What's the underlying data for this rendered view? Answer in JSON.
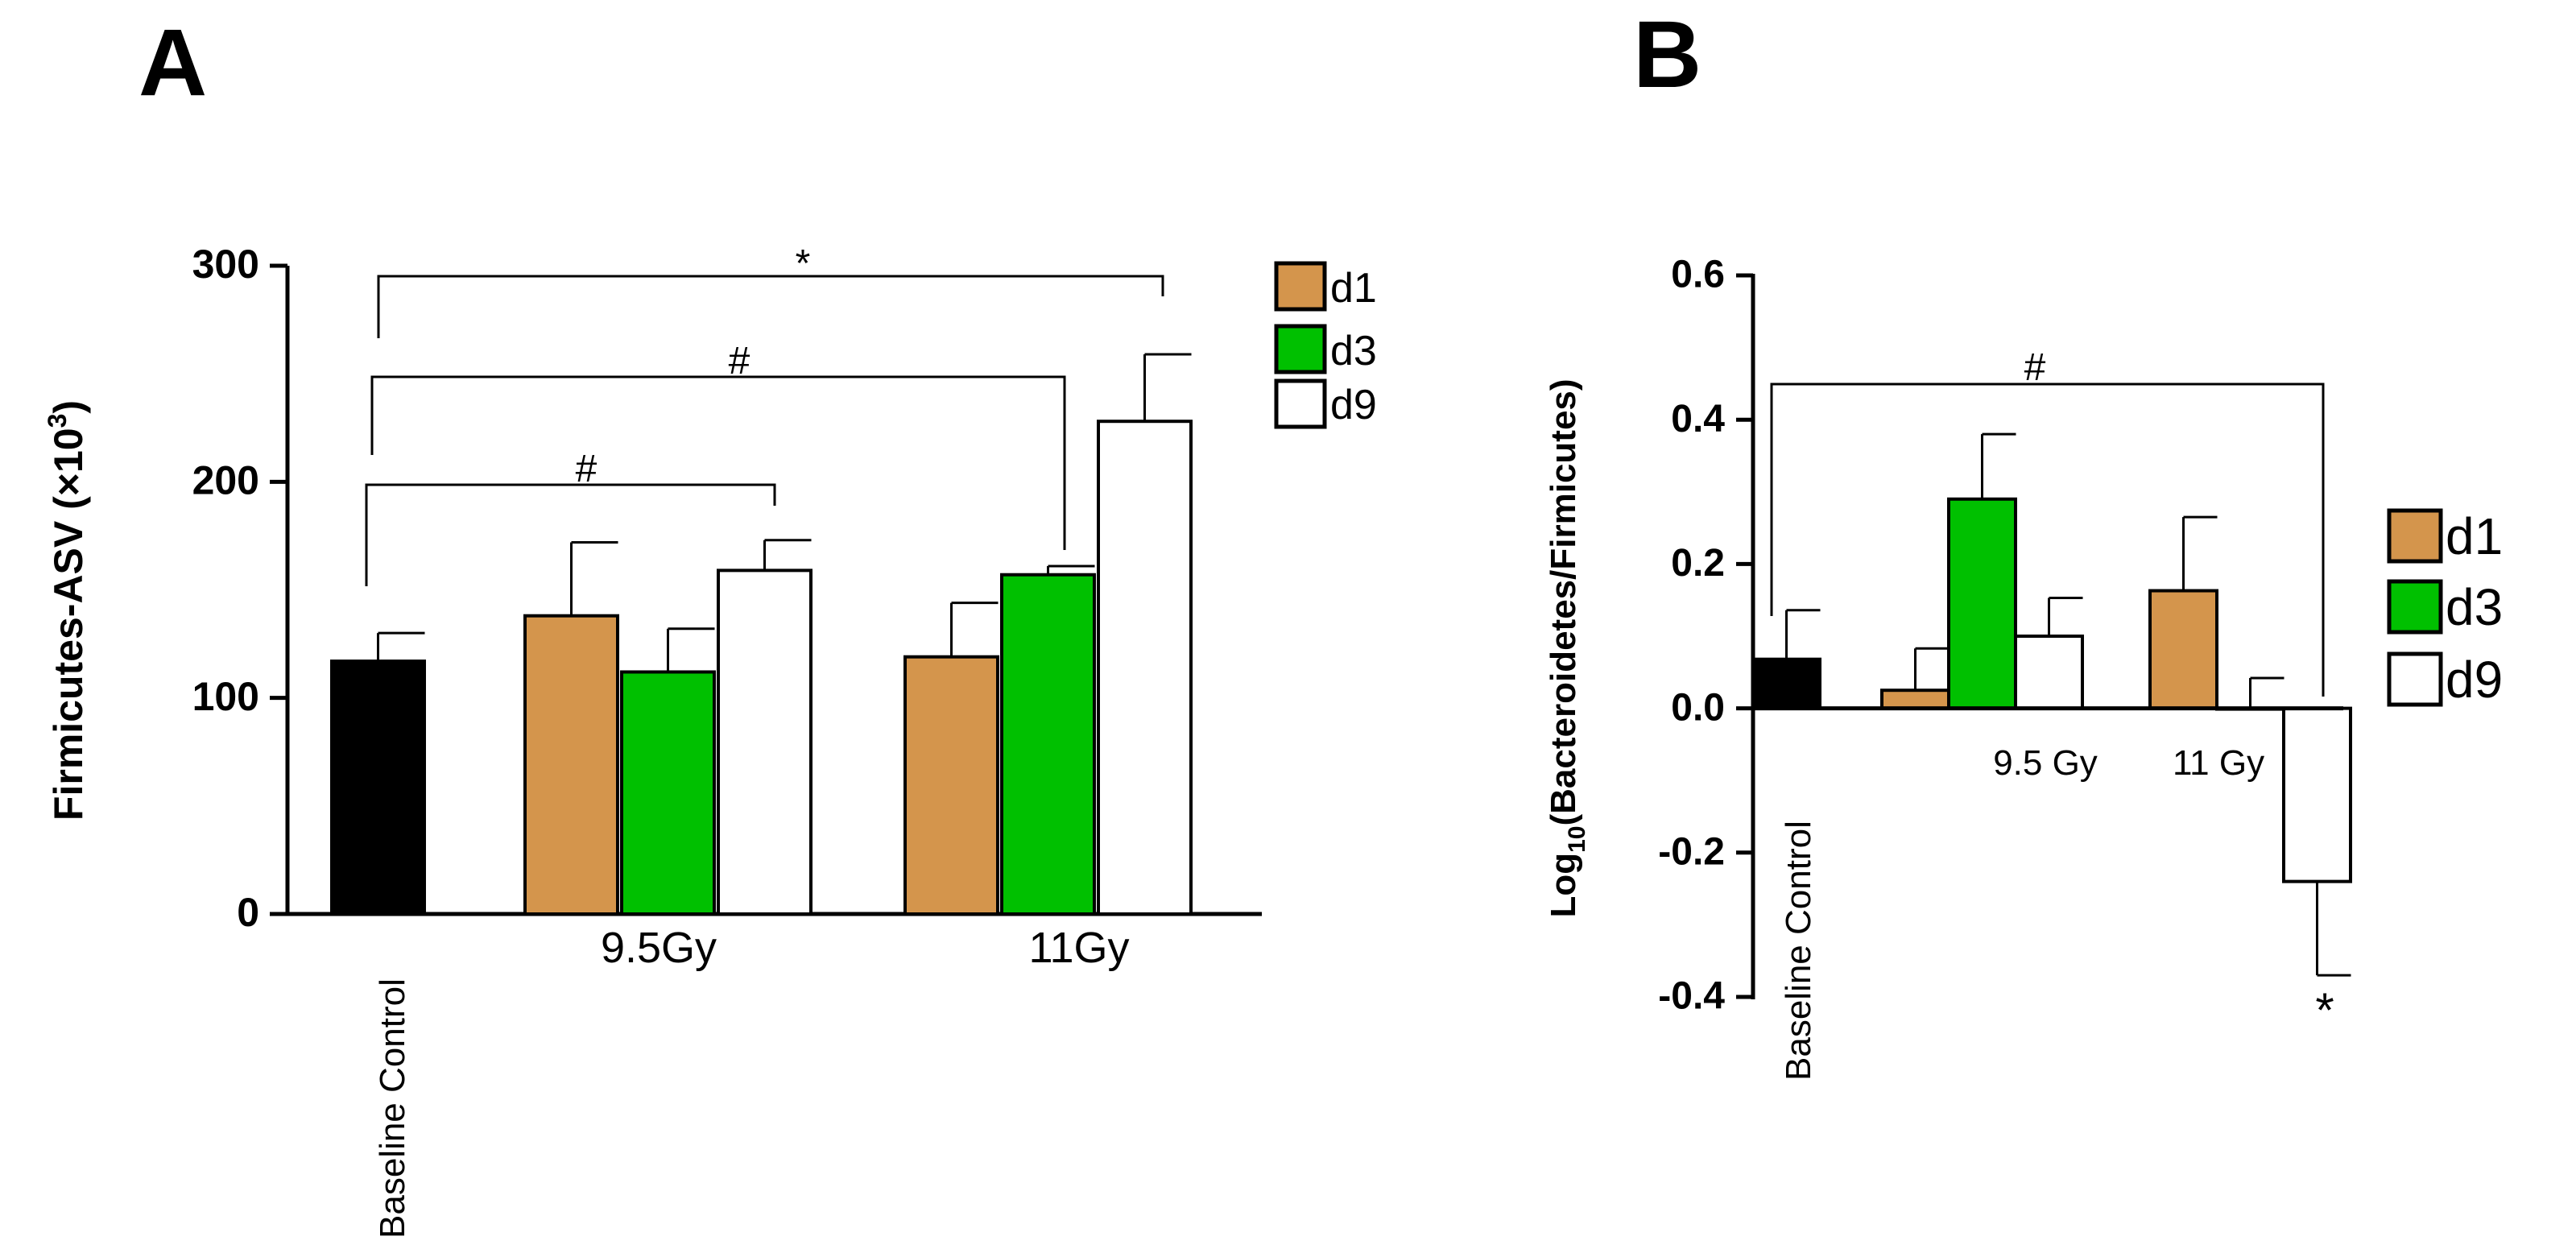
{
  "chart_data": [
    {
      "panel": "A",
      "type": "bar",
      "title": "",
      "ylabel_main": "Firmicutes-ASV (×10",
      "ylabel_sup": "3",
      "ylabel_end": ")",
      "ylim": [
        0,
        300
      ],
      "yticks": [
        0,
        100,
        200,
        300
      ],
      "ytick_labels": [
        "0",
        "100",
        "200",
        "300"
      ],
      "groups": [
        "Baseline Control",
        "9.5Gy",
        "11Gy"
      ],
      "legend": [
        "d1",
        "d3",
        "d9"
      ],
      "colors": {
        "control": "#000000",
        "d1": "#d4954c",
        "d3": "#00c000",
        "d9": "#ffffff"
      },
      "bars": [
        {
          "group": "Baseline Control",
          "series": "control",
          "value": 117,
          "error": 13
        },
        {
          "group": "9.5Gy",
          "series": "d1",
          "value": 138,
          "error": 34
        },
        {
          "group": "9.5Gy",
          "series": "d3",
          "value": 112,
          "error": 20
        },
        {
          "group": "9.5Gy",
          "series": "d9",
          "value": 159,
          "error": 14
        },
        {
          "group": "11Gy",
          "series": "d1",
          "value": 119,
          "error": 25
        },
        {
          "group": "11Gy",
          "series": "d3",
          "value": 157,
          "error": 4
        },
        {
          "group": "11Gy",
          "series": "d9",
          "value": 228,
          "error": 31
        }
      ],
      "annotations": [
        {
          "label": "#",
          "from": "Baseline Control",
          "to": "9.5Gy d9"
        },
        {
          "label": "#",
          "from": "Baseline Control",
          "to": "11Gy d3"
        },
        {
          "label": "*",
          "from": "Baseline Control",
          "to": "11Gy d9"
        }
      ]
    },
    {
      "panel": "B",
      "type": "bar",
      "title": "",
      "ylabel_pre": "Log",
      "ylabel_sub": "10",
      "ylabel_post": "(Bacteroidetes/Firmicutes)",
      "ylim": [
        -0.4,
        0.6
      ],
      "yticks": [
        -0.4,
        -0.2,
        0.0,
        0.2,
        0.4,
        0.6
      ],
      "ytick_labels": [
        "-0.4",
        "-0.2",
        "0.0",
        "0.2",
        "0.4",
        "0.6"
      ],
      "groups": [
        "Baseline Control",
        "9.5 Gy",
        "11 Gy"
      ],
      "legend": [
        "d1",
        "d3",
        "d9"
      ],
      "colors": {
        "control": "#000000",
        "d1": "#d4954c",
        "d3": "#00c000",
        "d9": "#ffffff"
      },
      "bars": [
        {
          "group": "Baseline Control",
          "series": "control",
          "value": 0.068,
          "error": 0.068
        },
        {
          "group": "9.5 Gy",
          "series": "d1",
          "value": 0.025,
          "error": 0.058
        },
        {
          "group": "9.5 Gy",
          "series": "d3",
          "value": 0.29,
          "error": 0.09
        },
        {
          "group": "9.5 Gy",
          "series": "d9",
          "value": 0.1,
          "error": 0.053
        },
        {
          "group": "11 Gy",
          "series": "d1",
          "value": 0.163,
          "error": 0.102
        },
        {
          "group": "11 Gy",
          "series": "d3",
          "value": 0.0,
          "error": 0.042
        },
        {
          "group": "11 Gy",
          "series": "d9",
          "value": -0.24,
          "error": 0.13
        }
      ],
      "annotations": [
        {
          "label": "#",
          "from": "Baseline Control",
          "to": "11 Gy d9"
        },
        {
          "label": "*",
          "at": "11 Gy d9"
        }
      ]
    }
  ]
}
